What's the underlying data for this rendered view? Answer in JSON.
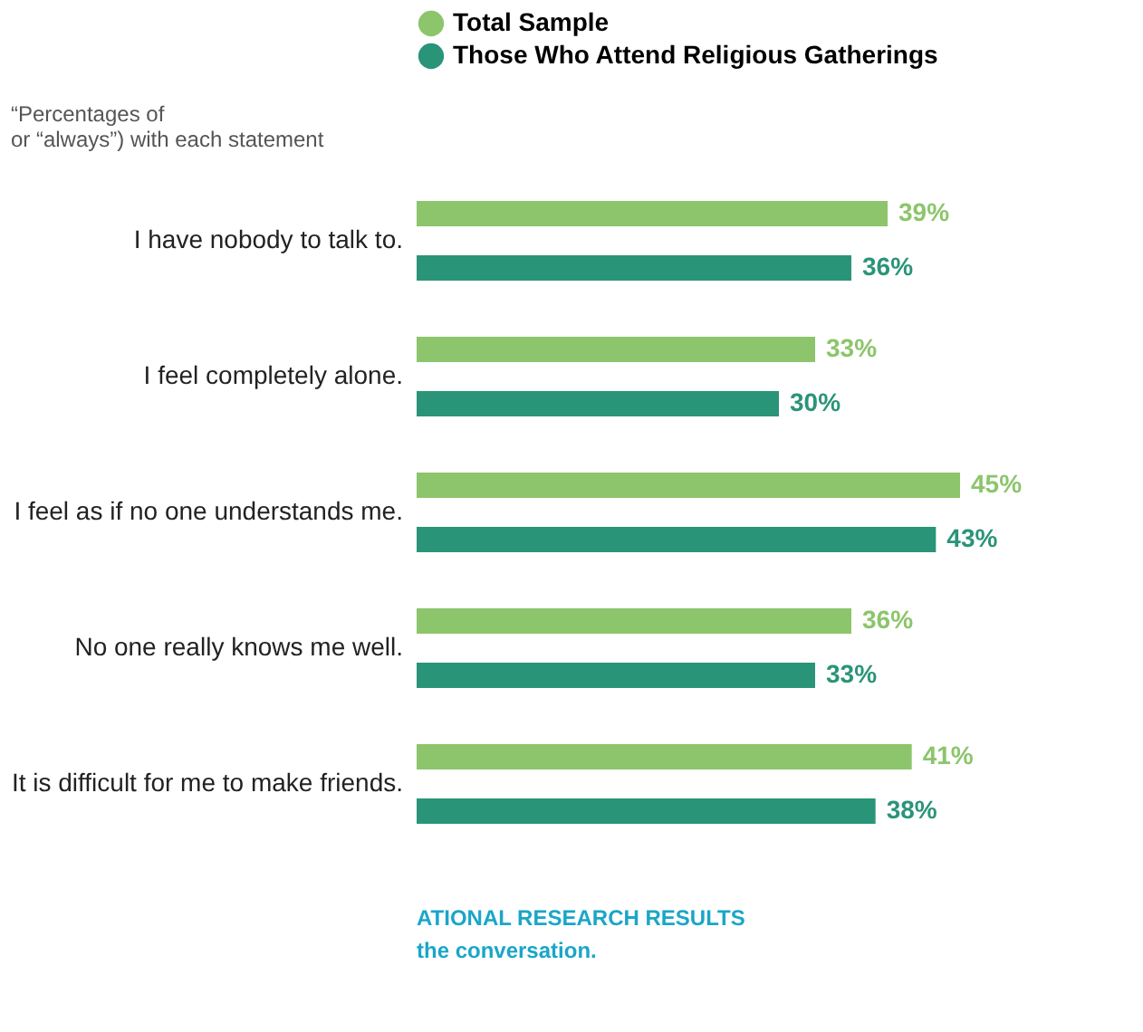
{
  "chart_data": {
    "type": "bar",
    "orientation": "horizontal",
    "subtitle": [
      "“Percentages of",
      "or “always”) with each statement"
    ],
    "categories": [
      "I have nobody to talk to.",
      "I feel completely alone.",
      "I feel as if no one understands me.",
      "No one really knows me well.",
      "It is difficult for me to make friends."
    ],
    "series": [
      {
        "name": "Total Sample",
        "color": "#8cc56b",
        "values": [
          39,
          33,
          45,
          36,
          41
        ],
        "value_labels": [
          "39%",
          "33%",
          "45%",
          "36%",
          "41%"
        ]
      },
      {
        "name": "Those Who Attend Religious Gatherings",
        "color": "#2a9478",
        "values": [
          36,
          30,
          43,
          33,
          38
        ],
        "value_labels": [
          "36%",
          "30%",
          "43%",
          "33%",
          "38%"
        ]
      }
    ],
    "legend": "top",
    "tick_labels": "y",
    "grid": false,
    "annotations": [
      "ATIONAL RESEARCH RESULTS",
      "the conversation."
    ]
  }
}
